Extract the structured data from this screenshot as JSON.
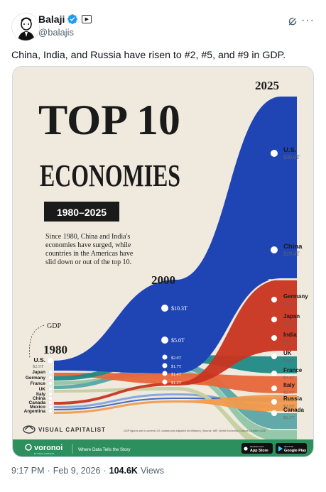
{
  "user": {
    "display_name": "Balaji",
    "handle": "@balajis"
  },
  "tweet": {
    "text": "China, India, and Russia have risen to #2, #5, and #9 in GDP.",
    "time": "9:17 PM",
    "date": "Feb 9, 2026",
    "views_count": "104.6K",
    "views_label": "Views"
  },
  "infographic": {
    "title_line1": "TOP 10",
    "title_line2": "ECONOMIES",
    "years_badge": "1980–2025",
    "description_lines": [
      "Since 1980, China and India's",
      "economies have surged, while",
      "countries in the Americas have",
      "slid down or out of the top 10."
    ],
    "year_2025": "2025",
    "year_2000": "2000",
    "year_1980": "1980",
    "gdp_label": "GDP",
    "left_countries": [
      "U.S.",
      "Japan",
      "Germany",
      "France",
      "UK",
      "Italy",
      "China",
      "Canada",
      "Mexico",
      "Argentina"
    ],
    "left_us_value": "$2.9T",
    "mid_values": [
      "$10.3T",
      "$5.0T",
      "$2.0T",
      "$1.7T",
      "$1.4T",
      "$1.2T"
    ],
    "right_countries": [
      {
        "name": "U.S.",
        "value": "$30.6T"
      },
      {
        "name": "China",
        "value": "$19.4T"
      },
      {
        "name": "Germany",
        "value": "$5.0T"
      },
      {
        "name": "Japan",
        "value": "$4.3T"
      },
      {
        "name": "India",
        "value": "$4.1T"
      },
      {
        "name": "UK",
        "value": "$4.0T"
      },
      {
        "name": "France",
        "value": "$3.4T"
      },
      {
        "name": "Italy",
        "value": "$2.5T"
      },
      {
        "name": "Russia",
        "value": "$2.5T"
      },
      {
        "name": "Canada",
        "value": "$2.3T"
      }
    ],
    "brand": "VISUAL CAPITALIST",
    "footnote": "GDP figures are in current U.S. dollars (not adjusted for inflation)  |  Source: IMF, World Economic Outlook October 2025",
    "voronoi_brand": "voronoi",
    "voronoi_sub": "BY VISUAL CAPITALIST",
    "voronoi_tagline": "Where Data Tells the Story",
    "app_store_top": "Download on the",
    "app_store": "App Store",
    "google_play_top": "GET IT ON",
    "google_play": "Google Play"
  },
  "colors": {
    "us": "#1f45b5",
    "china": "#c9341f",
    "germany": "#1f8a86",
    "japan": "#e8663a",
    "india": "#f29a4b",
    "uk": "#5aa6a5",
    "france": "#8fc6a8",
    "italy": "#c3d1a0",
    "russia": "#3a63c4",
    "canada": "#7ea4de",
    "background": "#efe9de",
    "green_bar": "#2e8f5e"
  }
}
